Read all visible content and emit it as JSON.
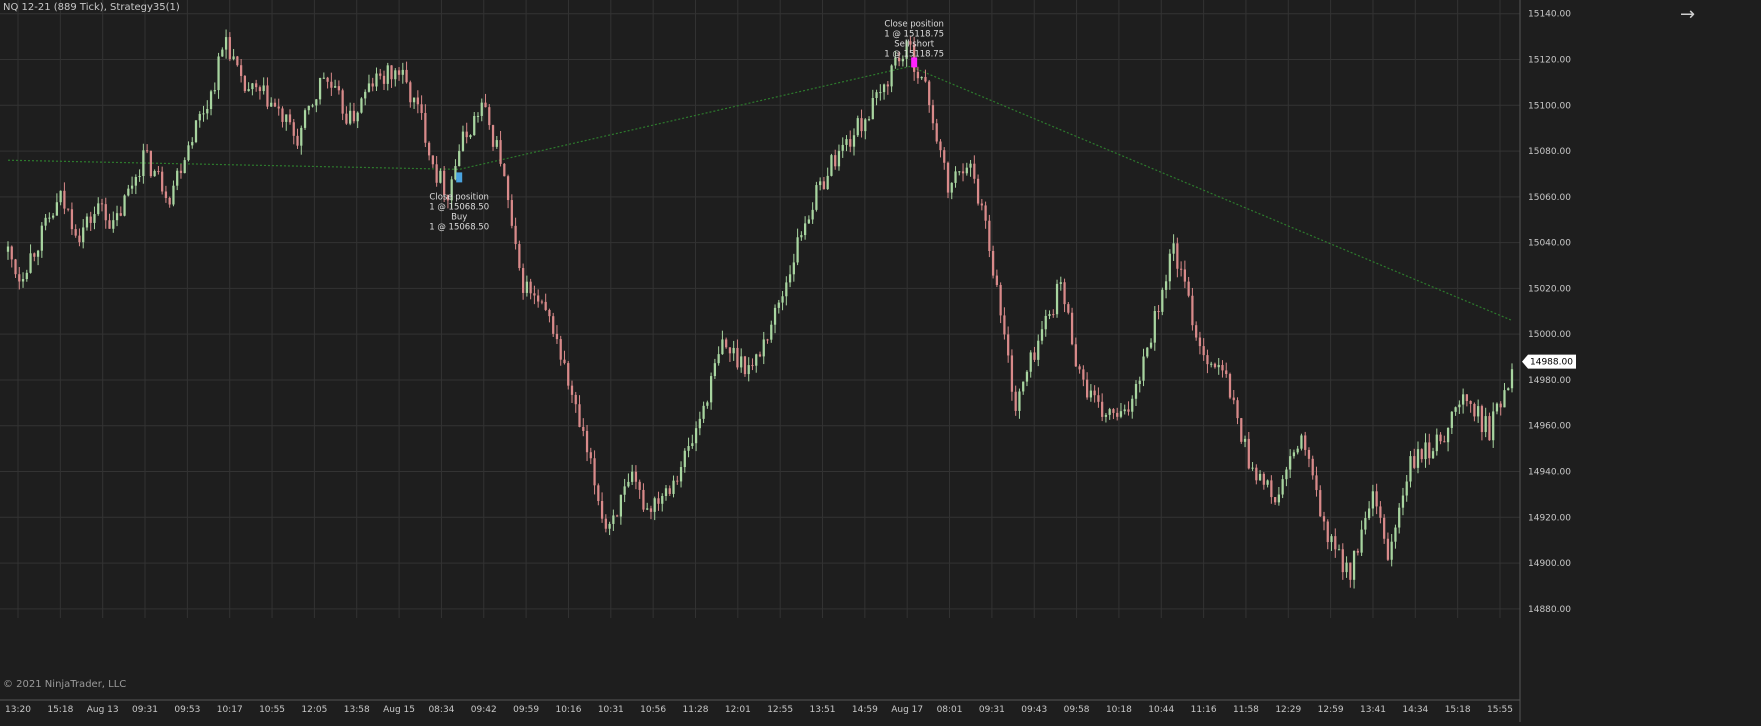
{
  "title": "NQ 12-21 (889 Tick), Strategy35(1)",
  "copyright": "© 2021 NinjaTrader, LLC",
  "colors": {
    "background": "#1e1e1e",
    "grid": "#333333",
    "up_candle": "#a8d5a0",
    "down_candle": "#d98a8a",
    "trade_line": "#2d7a2d",
    "entry_marker": "#4aa3df",
    "exit_marker": "#ff22ff",
    "price_badge": "#ffffff"
  },
  "icons": {
    "navigate": "arrow-right-icon"
  },
  "chart_data": {
    "type": "candlestick",
    "y_axis": {
      "side": "right",
      "ticks": [
        "15140.00",
        "15120.00",
        "15100.00",
        "15080.00",
        "15060.00",
        "15040.00",
        "15020.00",
        "15000.00",
        "14980.00",
        "14960.00",
        "14940.00",
        "14920.00",
        "14900.00",
        "14880.00"
      ],
      "ylim": [
        14876,
        15146
      ]
    },
    "x_axis": {
      "ticks": [
        "13:20",
        "15:18",
        "Aug 13",
        "09:31",
        "09:53",
        "10:17",
        "10:55",
        "12:05",
        "13:58",
        "Aug 15",
        "08:34",
        "09:42",
        "09:59",
        "10:16",
        "10:31",
        "10:56",
        "11:28",
        "12:01",
        "12:55",
        "13:51",
        "14:59",
        "Aug 17",
        "08:01",
        "09:31",
        "09:43",
        "09:58",
        "10:18",
        "10:44",
        "11:16",
        "11:58",
        "12:29",
        "12:59",
        "13:41",
        "14:34",
        "15:18",
        "15:55"
      ]
    },
    "grid": true,
    "last_price": "14988.00",
    "price_path": [
      {
        "x": 0,
        "y": 15036
      },
      {
        "x": 3,
        "y": 15025
      },
      {
        "x": 14,
        "y": 15059
      },
      {
        "x": 19,
        "y": 15044
      },
      {
        "x": 25,
        "y": 15057
      },
      {
        "x": 28,
        "y": 15046
      },
      {
        "x": 36,
        "y": 15078
      },
      {
        "x": 43,
        "y": 15061
      },
      {
        "x": 49,
        "y": 15088
      },
      {
        "x": 54,
        "y": 15105
      },
      {
        "x": 58,
        "y": 15130
      },
      {
        "x": 62,
        "y": 15108
      },
      {
        "x": 69,
        "y": 15103
      },
      {
        "x": 77,
        "y": 15085
      },
      {
        "x": 84,
        "y": 15113
      },
      {
        "x": 91,
        "y": 15093
      },
      {
        "x": 97,
        "y": 15110
      },
      {
        "x": 104,
        "y": 15115
      },
      {
        "x": 110,
        "y": 15094
      },
      {
        "x": 114,
        "y": 15070
      },
      {
        "x": 117,
        "y": 15062
      },
      {
        "x": 120,
        "y": 15081
      },
      {
        "x": 126,
        "y": 15100
      },
      {
        "x": 131,
        "y": 15077
      },
      {
        "x": 136,
        "y": 15025
      },
      {
        "x": 145,
        "y": 15003
      },
      {
        "x": 152,
        "y": 14960
      },
      {
        "x": 159,
        "y": 14916
      },
      {
        "x": 166,
        "y": 14935
      },
      {
        "x": 170,
        "y": 14924
      },
      {
        "x": 177,
        "y": 14937
      },
      {
        "x": 182,
        "y": 14953
      },
      {
        "x": 190,
        "y": 14995
      },
      {
        "x": 198,
        "y": 14985
      },
      {
        "x": 205,
        "y": 15013
      },
      {
        "x": 212,
        "y": 15050
      },
      {
        "x": 219,
        "y": 15075
      },
      {
        "x": 226,
        "y": 15090
      },
      {
        "x": 232,
        "y": 15104
      },
      {
        "x": 236,
        "y": 15120
      },
      {
        "x": 240,
        "y": 15124
      },
      {
        "x": 245,
        "y": 15102
      },
      {
        "x": 250,
        "y": 15063
      },
      {
        "x": 255,
        "y": 15077
      },
      {
        "x": 260,
        "y": 15050
      },
      {
        "x": 268,
        "y": 14968
      },
      {
        "x": 273,
        "y": 14993
      },
      {
        "x": 280,
        "y": 15022
      },
      {
        "x": 285,
        "y": 14983
      },
      {
        "x": 290,
        "y": 14966
      },
      {
        "x": 297,
        "y": 14963
      },
      {
        "x": 303,
        "y": 14995
      },
      {
        "x": 310,
        "y": 15038
      },
      {
        "x": 317,
        "y": 14995
      },
      {
        "x": 324,
        "y": 14980
      },
      {
        "x": 330,
        "y": 14945
      },
      {
        "x": 337,
        "y": 14927
      },
      {
        "x": 344,
        "y": 14955
      },
      {
        "x": 351,
        "y": 14910
      },
      {
        "x": 357,
        "y": 14896
      },
      {
        "x": 363,
        "y": 14928
      },
      {
        "x": 367,
        "y": 14903
      },
      {
        "x": 373,
        "y": 14943
      },
      {
        "x": 380,
        "y": 14952
      },
      {
        "x": 387,
        "y": 14972
      },
      {
        "x": 394,
        "y": 14958
      },
      {
        "x": 400,
        "y": 14985
      }
    ],
    "trade_line": [
      {
        "x": 0,
        "y": 15076
      },
      {
        "x": 120,
        "y": 15072
      },
      {
        "x": 240,
        "y": 15117
      },
      {
        "x": 400,
        "y": 15006
      }
    ],
    "markers": [
      {
        "x": 120,
        "y": 15068.5,
        "type": "buy",
        "side": "below",
        "lines": [
          "Close position",
          "1 @ 15068.50",
          "Buy",
          "1 @ 15068.50"
        ]
      },
      {
        "x": 241,
        "y": 15118.75,
        "type": "sell",
        "side": "above",
        "lines": [
          "Close position",
          "1 @ 15118.75",
          "Sell short",
          "1 @ 15118.75"
        ]
      }
    ]
  }
}
